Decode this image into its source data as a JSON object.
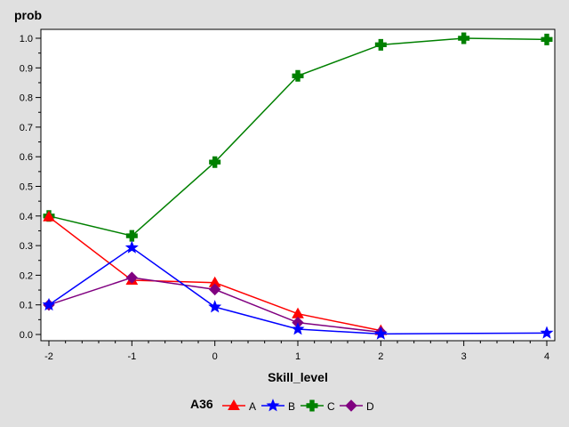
{
  "chart_data": {
    "type": "line",
    "ylabel": "prob",
    "xlabel": "Skill_level",
    "x": [
      -2,
      -1,
      0,
      1,
      2,
      3,
      4
    ],
    "xlim": [
      -2,
      4
    ],
    "ylim": [
      0,
      1
    ],
    "xticks": [
      "-2",
      "-1",
      "0",
      "1",
      "2",
      "3",
      "4"
    ],
    "yticks": [
      "0.0",
      "0.1",
      "0.2",
      "0.3",
      "0.4",
      "0.5",
      "0.6",
      "0.7",
      "0.8",
      "0.9",
      "1.0"
    ],
    "legend_title": "A36",
    "legend_position": "bottom",
    "grid": false,
    "series": [
      {
        "name": "A",
        "color": "#ff0000",
        "marker": "triangle",
        "points": [
          [
            -2,
            0.397
          ],
          [
            -1,
            0.183
          ],
          [
            0,
            0.175
          ],
          [
            1,
            0.07
          ],
          [
            2,
            0.013
          ]
        ]
      },
      {
        "name": "B",
        "color": "#0000ff",
        "marker": "star",
        "points": [
          [
            -2,
            0.1
          ],
          [
            -1,
            0.293
          ],
          [
            0,
            0.093
          ],
          [
            1,
            0.018
          ],
          [
            2,
            0.002
          ],
          [
            4,
            0.005
          ]
        ]
      },
      {
        "name": "C",
        "color": "#008000",
        "marker": "plus",
        "points": [
          [
            -2,
            0.4
          ],
          [
            -1,
            0.333
          ],
          [
            0,
            0.582
          ],
          [
            1,
            0.873
          ],
          [
            2,
            0.978
          ],
          [
            3,
            1.0
          ],
          [
            4,
            0.996
          ]
        ]
      },
      {
        "name": "D",
        "color": "#800080",
        "marker": "diamond",
        "points": [
          [
            -2,
            0.1
          ],
          [
            -1,
            0.192
          ],
          [
            0,
            0.152
          ],
          [
            1,
            0.04
          ],
          [
            2,
            0.008
          ]
        ]
      }
    ]
  }
}
